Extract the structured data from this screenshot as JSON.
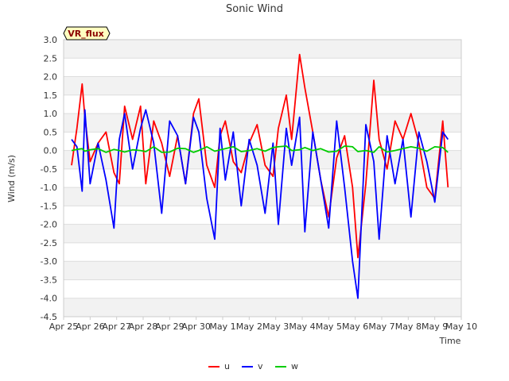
{
  "chart_data": {
    "type": "line",
    "title": "Sonic Wind",
    "xlabel": "Time",
    "ylabel": "Wind (m/s)",
    "badge": "VR_flux",
    "ylim": [
      -4.5,
      3.0
    ],
    "y_ticks": [
      -4.5,
      -4.0,
      -3.5,
      -3.0,
      -2.5,
      -2.0,
      -1.5,
      -1.0,
      -0.5,
      0.0,
      0.5,
      1.0,
      1.5,
      2.0,
      2.5,
      3.0
    ],
    "y_tick_labels": [
      "-4.5",
      "-4.0",
      "-3.5",
      "-3.0",
      "-2.5",
      "-2.0",
      "-1.5",
      "-1.0",
      "-0.5",
      "0.0",
      "0.5",
      "1.0",
      "1.5",
      "2.0",
      "2.5",
      "3.0"
    ],
    "xlim": [
      0,
      15
    ],
    "x_tick_labels": [
      "Apr 25",
      "Apr 26",
      "Apr 27",
      "Apr 28",
      "Apr 29",
      "Apr 30",
      "May 1",
      "May 2",
      "May 3",
      "May 4",
      "May 5",
      "May 6",
      "May 7",
      "May 8",
      "May 9",
      "May 10"
    ],
    "x_days": [
      0.3,
      0.5,
      0.7,
      0.8,
      1.0,
      1.3,
      1.6,
      1.9,
      2.1,
      2.3,
      2.6,
      2.9,
      3.1,
      3.4,
      3.7,
      4.0,
      4.3,
      4.6,
      4.9,
      5.1,
      5.4,
      5.7,
      5.9,
      6.1,
      6.4,
      6.7,
      7.0,
      7.3,
      7.6,
      7.9,
      8.1,
      8.4,
      8.6,
      8.9,
      9.1,
      9.4,
      9.7,
      10.0,
      10.3,
      10.6,
      10.9,
      11.1,
      11.4,
      11.7,
      11.9,
      12.2,
      12.5,
      12.8,
      13.1,
      13.4,
      13.7,
      14.0,
      14.3,
      14.5
    ],
    "series": [
      {
        "name": "u",
        "color": "#ff0000",
        "values": [
          -0.4,
          0.6,
          1.8,
          0.9,
          -0.3,
          0.2,
          0.5,
          -0.6,
          -0.9,
          1.2,
          0.3,
          1.2,
          -0.9,
          0.8,
          0.2,
          -0.7,
          0.4,
          -0.9,
          1.0,
          1.4,
          -0.4,
          -1.0,
          0.4,
          0.8,
          -0.3,
          -0.6,
          0.2,
          0.7,
          -0.4,
          -0.7,
          0.6,
          1.5,
          0.3,
          2.6,
          1.7,
          0.5,
          -0.8,
          -1.8,
          -0.2,
          0.4,
          -1.0,
          -2.9,
          -0.9,
          1.9,
          0.3,
          -0.5,
          0.8,
          0.3,
          1.0,
          0.2,
          -1.0,
          -1.3,
          0.8,
          -1.0
        ]
      },
      {
        "name": "v",
        "color": "#0000ff",
        "values": [
          0.3,
          0.1,
          -1.1,
          1.1,
          -0.9,
          0.2,
          -0.8,
          -2.1,
          0.3,
          1.0,
          -0.5,
          0.6,
          1.1,
          0.2,
          -1.7,
          0.8,
          0.4,
          -0.9,
          0.9,
          0.5,
          -1.3,
          -2.4,
          0.6,
          -0.8,
          0.5,
          -1.5,
          0.3,
          -0.4,
          -1.7,
          0.2,
          -2.0,
          0.6,
          -0.4,
          0.9,
          -2.2,
          0.5,
          -0.8,
          -2.1,
          0.8,
          -1.0,
          -3.0,
          -4.0,
          0.7,
          -0.3,
          -2.4,
          0.4,
          -0.9,
          0.3,
          -1.8,
          0.5,
          -0.3,
          -1.4,
          0.5,
          0.3
        ]
      },
      {
        "name": "w",
        "color": "#00cc00",
        "values": [
          0.0,
          0.03,
          0.05,
          -0.02,
          0.02,
          0.05,
          -0.05,
          0.03,
          0.0,
          -0.04,
          0.02,
          0.0,
          -0.03,
          0.1,
          -0.05,
          -0.04,
          0.06,
          0.05,
          -0.05,
          0.0,
          0.1,
          -0.02,
          0.02,
          0.05,
          0.1,
          -0.03,
          0.0,
          0.05,
          -0.02,
          0.08,
          0.1,
          0.12,
          0.0,
          0.02,
          0.08,
          0.0,
          0.05,
          -0.04,
          -0.02,
          0.12,
          0.1,
          -0.03,
          0.0,
          -0.05,
          0.1,
          -0.04,
          0.0,
          0.05,
          0.1,
          0.06,
          -0.02,
          0.1,
          0.08,
          -0.05
        ]
      }
    ],
    "legend": [
      {
        "label": "u",
        "color": "#ff0000"
      },
      {
        "label": "v",
        "color": "#0000ff"
      },
      {
        "label": "w",
        "color": "#00cc00"
      }
    ],
    "legend_position": "bottom-center",
    "grid": true
  }
}
